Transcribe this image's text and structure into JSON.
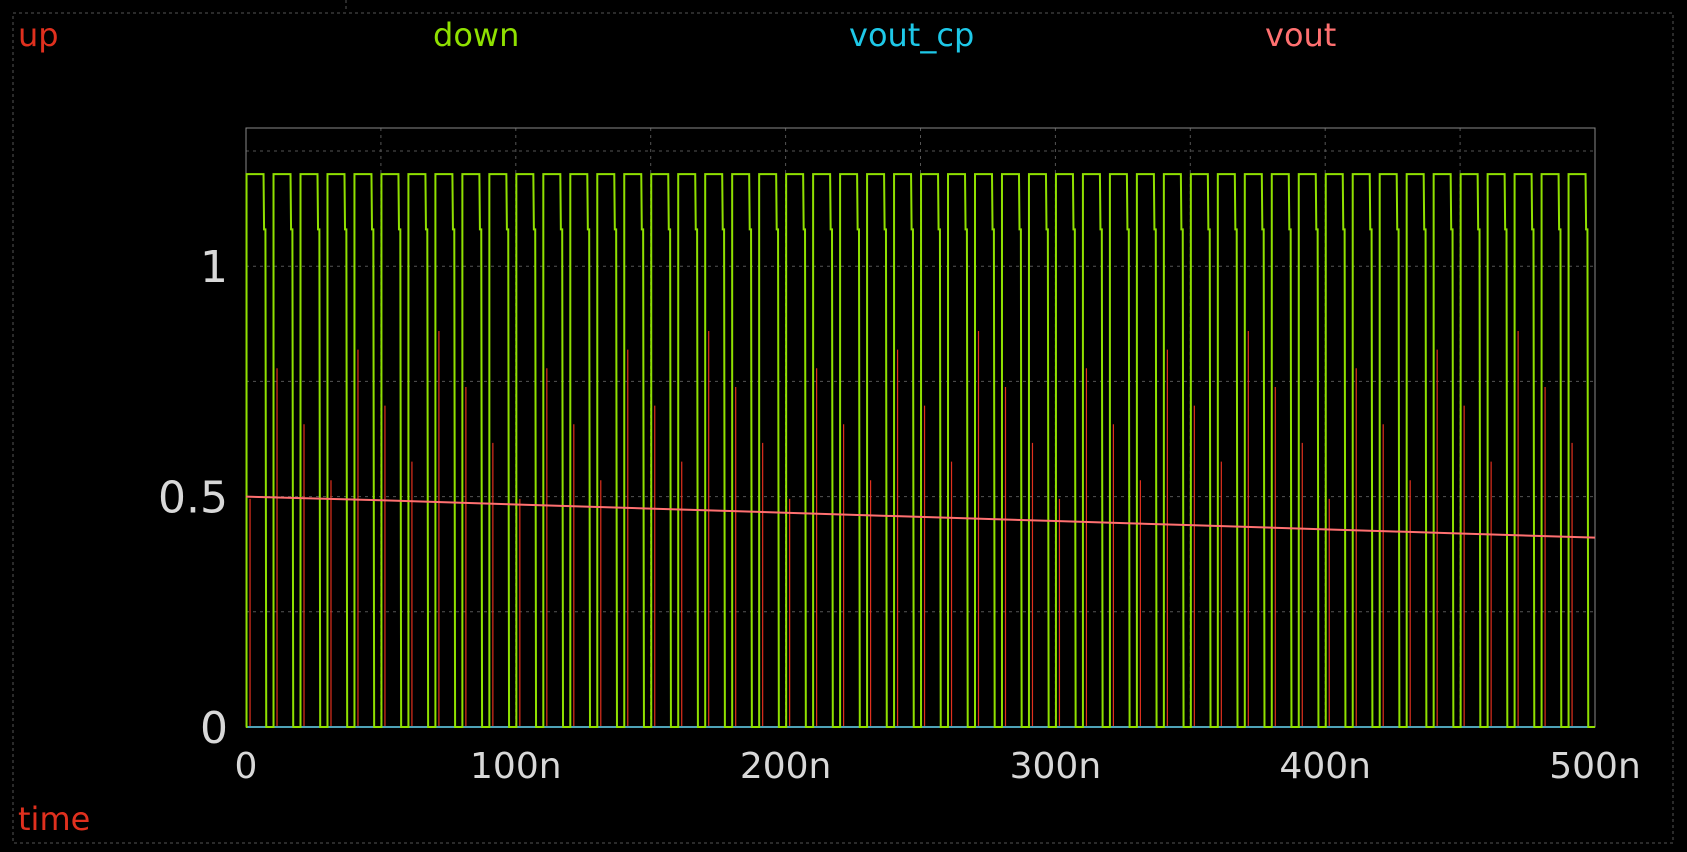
{
  "chart_data": {
    "type": "line",
    "xlabel": "time",
    "x_tick_labels": [
      "0",
      "100n",
      "200n",
      "300n",
      "400n",
      "500n"
    ],
    "x_ticks": [
      0,
      100,
      200,
      300,
      400,
      500
    ],
    "y_tick_labels": [
      "0",
      "0.5",
      "1"
    ],
    "y_ticks": [
      0,
      0.5,
      1
    ],
    "xlim": [
      0,
      500
    ],
    "ylim": [
      0,
      1.3
    ],
    "x_unit": "ns",
    "grid": true,
    "legend": "top",
    "colors": {
      "up": "#e0301e",
      "down": "#8fe000",
      "vout_cp": "#1ec8e8",
      "vout": "#ff7070",
      "xlabel": "#e0301e",
      "grid": "#555555",
      "frame": "#888888"
    },
    "down_pulses": {
      "period": 10,
      "high_level": 1.2,
      "low_level": 0,
      "low_intervals": [
        [
          7.5,
          10
        ]
      ],
      "first_pulse_start": 0
    },
    "series": [
      {
        "name": "up",
        "x": [
          0,
          500
        ],
        "y": [
          0,
          0
        ],
        "spikes": {
          "level": 0.9,
          "period": 10,
          "offset": 1.5
        }
      },
      {
        "name": "down",
        "x": [],
        "y": []
      },
      {
        "name": "vout_cp",
        "x": [
          0,
          500
        ],
        "y": [
          0,
          0
        ]
      },
      {
        "name": "vout",
        "x": [
          0,
          50,
          100,
          150,
          200,
          250,
          300,
          350,
          400,
          450,
          500
        ],
        "y": [
          0.5,
          0.492,
          0.483,
          0.474,
          0.465,
          0.456,
          0.447,
          0.438,
          0.429,
          0.42,
          0.411
        ]
      }
    ]
  }
}
